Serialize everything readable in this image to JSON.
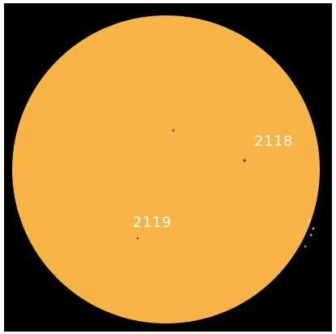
{
  "image": {
    "background_color": "#000000",
    "sun_color": "#f7ae3b",
    "sunspot_color": "#7a2d0f"
  },
  "regions": [
    {
      "id": "2118",
      "label": "2118"
    },
    {
      "id": "2119",
      "label": "2119"
    }
  ]
}
